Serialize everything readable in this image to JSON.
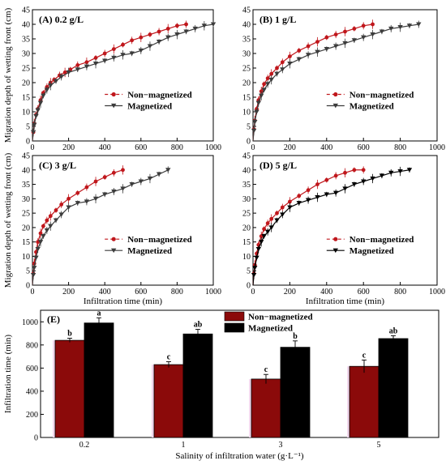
{
  "chart_data": [
    {
      "id": "A",
      "type": "line",
      "panel_label": "(A) 0.2 g/L",
      "xlabel": "",
      "ylabel": "Migration depth of wetting front (cm)",
      "xlim": [
        0,
        1000
      ],
      "ylim": [
        0,
        45
      ],
      "xticks": [
        0,
        200,
        400,
        600,
        800,
        1000
      ],
      "yticks": [
        0,
        5,
        10,
        15,
        20,
        25,
        30,
        35,
        40,
        45
      ],
      "legend_position": "middle-right",
      "series": [
        {
          "name": "Non−magnetized",
          "color": "#c0171c",
          "marker": "circle",
          "dashed": true,
          "x": [
            0,
            5,
            10,
            20,
            30,
            45,
            60,
            80,
            100,
            120,
            150,
            180,
            210,
            250,
            300,
            350,
            400,
            450,
            500,
            550,
            600,
            650,
            700,
            750,
            800,
            850
          ],
          "y": [
            0,
            3,
            6,
            9,
            11,
            14,
            16.5,
            18.5,
            20,
            21,
            22.5,
            23.5,
            24.5,
            26,
            27,
            28.5,
            30,
            31.5,
            33,
            34.5,
            35.5,
            36.5,
            37.5,
            38.5,
            39.5,
            40
          ]
        },
        {
          "name": "Magnetized",
          "color": "#3c3c3c",
          "marker": "triangle-down",
          "dashed": false,
          "x": [
            0,
            5,
            10,
            20,
            30,
            45,
            60,
            80,
            100,
            130,
            160,
            200,
            250,
            300,
            350,
            400,
            450,
            500,
            550,
            600,
            650,
            700,
            750,
            800,
            850,
            900,
            950,
            1000
          ],
          "y": [
            0,
            3,
            5.5,
            8.5,
            10.5,
            13,
            15.5,
            17.5,
            19,
            20.5,
            22,
            23.5,
            24.5,
            25.5,
            26.5,
            27.5,
            28.5,
            29.5,
            30,
            31,
            32.5,
            34,
            35.5,
            36.5,
            37.5,
            38.5,
            39.5,
            40
          ]
        }
      ]
    },
    {
      "id": "B",
      "type": "line",
      "panel_label": "(B) 1 g/L",
      "xlabel": "",
      "ylabel": "",
      "xlim": [
        0,
        1000
      ],
      "ylim": [
        0,
        45
      ],
      "xticks": [
        0,
        200,
        400,
        600,
        800,
        1000
      ],
      "yticks": [
        0,
        5,
        10,
        15,
        20,
        25,
        30,
        35,
        40,
        45
      ],
      "legend_position": "middle-right",
      "series": [
        {
          "name": "Non−magnetized",
          "color": "#c0171c",
          "marker": "circle",
          "dashed": true,
          "x": [
            0,
            5,
            10,
            20,
            30,
            45,
            60,
            80,
            100,
            130,
            160,
            200,
            250,
            300,
            350,
            400,
            450,
            500,
            550,
            600,
            650
          ],
          "y": [
            0,
            4,
            7,
            11,
            14,
            17,
            19.5,
            21.5,
            23,
            25,
            27,
            29,
            31,
            32.5,
            34,
            35.5,
            36.5,
            37.5,
            38.5,
            39.5,
            40
          ]
        },
        {
          "name": "Magnetized",
          "color": "#3c3c3c",
          "marker": "triangle-down",
          "dashed": false,
          "x": [
            0,
            5,
            10,
            20,
            30,
            45,
            60,
            80,
            100,
            130,
            160,
            200,
            250,
            300,
            350,
            400,
            450,
            500,
            550,
            600,
            650,
            700,
            750,
            800,
            850,
            900
          ],
          "y": [
            0,
            3.5,
            6.5,
            10,
            13,
            15.5,
            17.5,
            19.5,
            21,
            23,
            24.5,
            26.5,
            28,
            29.5,
            30.5,
            31.5,
            32.5,
            33.5,
            34.5,
            35.5,
            36.5,
            37.5,
            38.5,
            39,
            39.5,
            40
          ]
        }
      ]
    },
    {
      "id": "C",
      "type": "line",
      "panel_label": "(C) 3 g/L",
      "xlabel": "",
      "ylabel": "Migration depth of wetting front (cm)",
      "xlim": [
        0,
        1000
      ],
      "ylim": [
        0,
        45
      ],
      "xticks": [
        0,
        200,
        400,
        600,
        800,
        1000
      ],
      "yticks": [
        0,
        5,
        10,
        15,
        20,
        25,
        30,
        35,
        40,
        45
      ],
      "legend_position": "middle-right",
      "series": [
        {
          "name": "Non−magnetized",
          "color": "#c0171c",
          "marker": "circle",
          "dashed": true,
          "x": [
            0,
            5,
            10,
            20,
            30,
            45,
            60,
            80,
            100,
            130,
            160,
            200,
            250,
            300,
            350,
            400,
            450,
            500
          ],
          "y": [
            0,
            4,
            7.5,
            11.5,
            15,
            18,
            20.5,
            22.5,
            24,
            26,
            28,
            30,
            32,
            34,
            36,
            37.5,
            39,
            40
          ]
        },
        {
          "name": "Magnetized",
          "color": "#3c3c3c",
          "marker": "triangle-down",
          "dashed": false,
          "x": [
            0,
            5,
            10,
            20,
            30,
            45,
            60,
            80,
            100,
            130,
            160,
            200,
            250,
            300,
            350,
            400,
            450,
            500,
            550,
            600,
            650,
            700,
            750
          ],
          "y": [
            0,
            3.5,
            6,
            9.5,
            12.5,
            15,
            17,
            19,
            20.5,
            22.5,
            24.5,
            27,
            28.5,
            29,
            30,
            31.5,
            32.5,
            33.5,
            35,
            36,
            37,
            38.5,
            40
          ]
        }
      ]
    },
    {
      "id": "D",
      "type": "line",
      "panel_label": "(D) 5 g/L",
      "xlabel": "",
      "ylabel": "",
      "xlim": [
        0,
        1000
      ],
      "ylim": [
        0,
        45
      ],
      "xticks": [
        0,
        200,
        400,
        600,
        800,
        1000
      ],
      "yticks": [
        0,
        5,
        10,
        15,
        20,
        25,
        30,
        35,
        40,
        45
      ],
      "legend_position": "middle-right",
      "series": [
        {
          "name": "Non−magnetized",
          "color": "#c0171c",
          "marker": "circle",
          "dashed": true,
          "x": [
            0,
            5,
            10,
            20,
            30,
            45,
            60,
            80,
            100,
            130,
            160,
            200,
            250,
            300,
            350,
            400,
            450,
            500,
            550,
            600
          ],
          "y": [
            0,
            4,
            7,
            11,
            14,
            17,
            19.5,
            21.5,
            23,
            25,
            27,
            29,
            31,
            33,
            35,
            36.5,
            38,
            39,
            40,
            40
          ]
        },
        {
          "name": "Magnetized",
          "color": "#000000",
          "marker": "triangle-down",
          "dashed": false,
          "x": [
            0,
            5,
            10,
            20,
            30,
            45,
            60,
            80,
            100,
            130,
            160,
            200,
            250,
            300,
            350,
            400,
            450,
            500,
            550,
            600,
            650,
            700,
            750,
            800,
            850
          ],
          "y": [
            0,
            3.5,
            6,
            9.5,
            12.5,
            15,
            17,
            18.5,
            20,
            22.5,
            24.5,
            27,
            28.5,
            29.5,
            30.5,
            31.5,
            32,
            33.5,
            35,
            36,
            37,
            38,
            39,
            39.5,
            40
          ]
        }
      ]
    },
    {
      "id": "E",
      "type": "bar",
      "panel_label": "(E)",
      "xlabel": "Salinity of infiltration water (g·L⁻¹)",
      "ylabel": "Infiltration time (min)",
      "ylim": [
        0,
        1100
      ],
      "yticks": [
        0,
        200,
        400,
        600,
        800,
        1000
      ],
      "categories": [
        "0.2",
        "1",
        "3",
        "5"
      ],
      "legend_position": "top-center",
      "series": [
        {
          "name": "Non−magnetized",
          "color": "#8b0a0a",
          "values": [
            840,
            630,
            505,
            615
          ],
          "errors": [
            18,
            25,
            40,
            55
          ],
          "letters": [
            "b",
            "c",
            "c",
            "c"
          ]
        },
        {
          "name": "Magnetized",
          "color": "#000000",
          "values": [
            990,
            895,
            780,
            855
          ],
          "errors": [
            45,
            40,
            55,
            25
          ],
          "letters": [
            "a",
            "ab",
            "b",
            "ab"
          ]
        }
      ]
    }
  ],
  "shared": {
    "line_xlabel": "Infiltration time (min)"
  }
}
